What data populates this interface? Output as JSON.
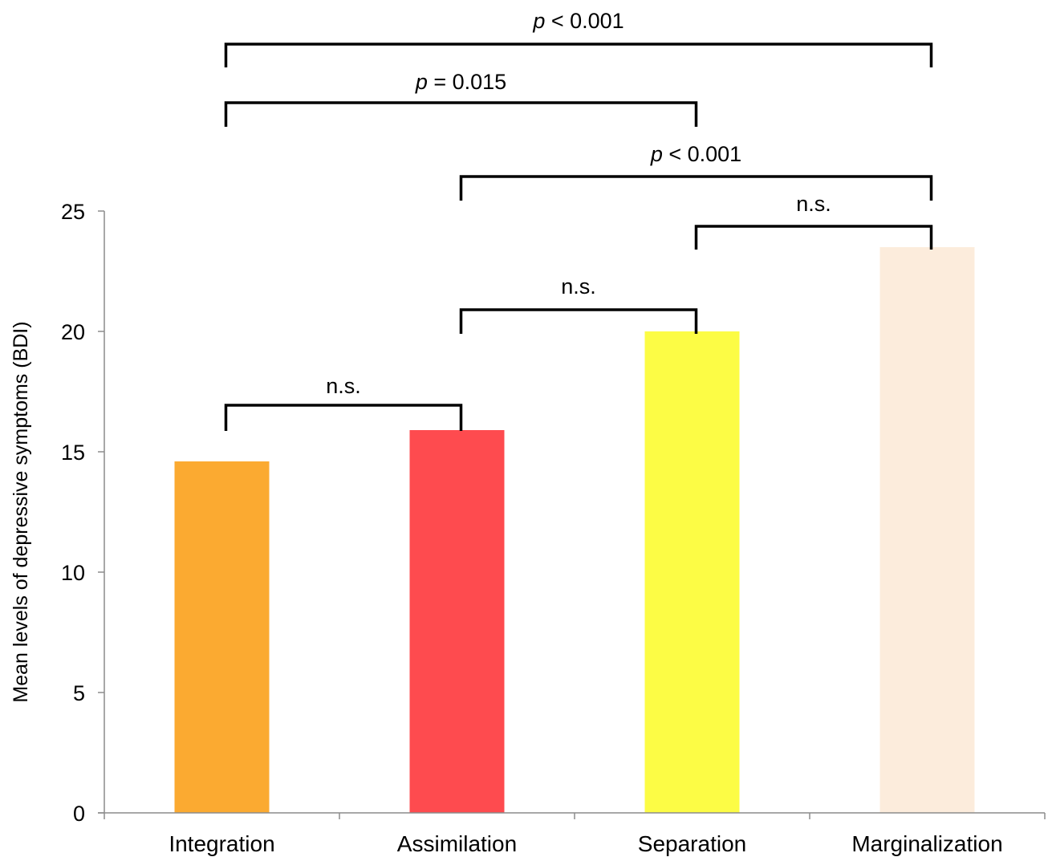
{
  "chart_data": {
    "type": "bar",
    "title": "",
    "xlabel": "",
    "ylabel": "Mean levels of depressive symptoms (BDI)",
    "ylim": [
      0,
      25
    ],
    "yticks": [
      0,
      5,
      10,
      15,
      20,
      25
    ],
    "categories": [
      "Integration",
      "Assimilation",
      "Separation",
      "Marginalization"
    ],
    "values": [
      14.6,
      15.9,
      20.0,
      23.5
    ],
    "colors": [
      "#fbaa31",
      "#fe4b4f",
      "#fcfc45",
      "#fcecdc"
    ],
    "grid": false,
    "legend": "none",
    "comparisons": [
      {
        "from": 0,
        "to": 1,
        "label": "n.s.",
        "p_prefix": "",
        "p_rest": ""
      },
      {
        "from": 1,
        "to": 2,
        "label": "n.s.",
        "p_prefix": "",
        "p_rest": ""
      },
      {
        "from": 2,
        "to": 3,
        "label": "n.s.",
        "p_prefix": "",
        "p_rest": ""
      },
      {
        "from": 1,
        "to": 3,
        "label": "",
        "p_prefix": "p",
        "p_rest": " < 0.001"
      },
      {
        "from": 0,
        "to": 2,
        "label": "",
        "p_prefix": "p",
        "p_rest": " = 0.015"
      },
      {
        "from": 0,
        "to": 3,
        "label": "",
        "p_prefix": "p",
        "p_rest": " < 0.001"
      }
    ]
  }
}
